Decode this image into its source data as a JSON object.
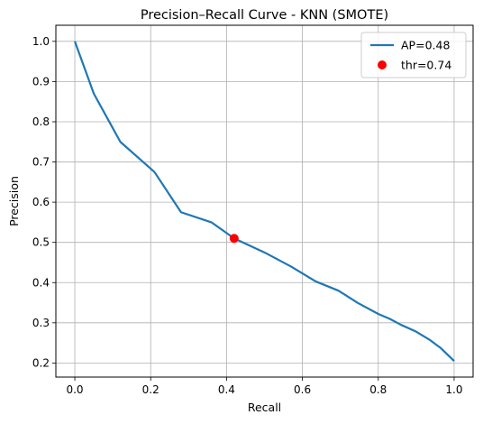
{
  "chart_data": {
    "type": "line",
    "title": "Precision–Recall Curve - KNN (SMOTE)",
    "xlabel": "Recall",
    "ylabel": "Precision",
    "xlim": [
      -0.05,
      1.05
    ],
    "ylim": [
      0.165,
      1.04
    ],
    "xticks": [
      0.0,
      0.2,
      0.4,
      0.6,
      0.8,
      1.0
    ],
    "xtick_labels": [
      "0.0",
      "0.2",
      "0.4",
      "0.6",
      "0.8",
      "1.0"
    ],
    "yticks": [
      0.2,
      0.3,
      0.4,
      0.5,
      0.6,
      0.7,
      0.8,
      0.9,
      1.0
    ],
    "ytick_labels": [
      "0.2",
      "0.3",
      "0.4",
      "0.5",
      "0.6",
      "0.7",
      "0.8",
      "0.9",
      "1.0"
    ],
    "grid": true,
    "legend_position": "top-right",
    "series": [
      {
        "name": "AP=0.48",
        "kind": "line",
        "color": "#1f77b4",
        "x": [
          0.0,
          0.05,
          0.12,
          0.21,
          0.28,
          0.36,
          0.42,
          0.5,
          0.57,
          0.635,
          0.695,
          0.745,
          0.8,
          0.83,
          0.86,
          0.9,
          0.935,
          0.965,
          1.0
        ],
        "y": [
          1.0,
          0.87,
          0.75,
          0.675,
          0.575,
          0.55,
          0.51,
          0.475,
          0.44,
          0.403,
          0.38,
          0.35,
          0.322,
          0.31,
          0.295,
          0.278,
          0.258,
          0.237,
          0.205
        ]
      },
      {
        "name": "thr=0.74",
        "kind": "scatter",
        "color": "#ff0000",
        "x": [
          0.42
        ],
        "y": [
          0.51
        ]
      }
    ]
  }
}
